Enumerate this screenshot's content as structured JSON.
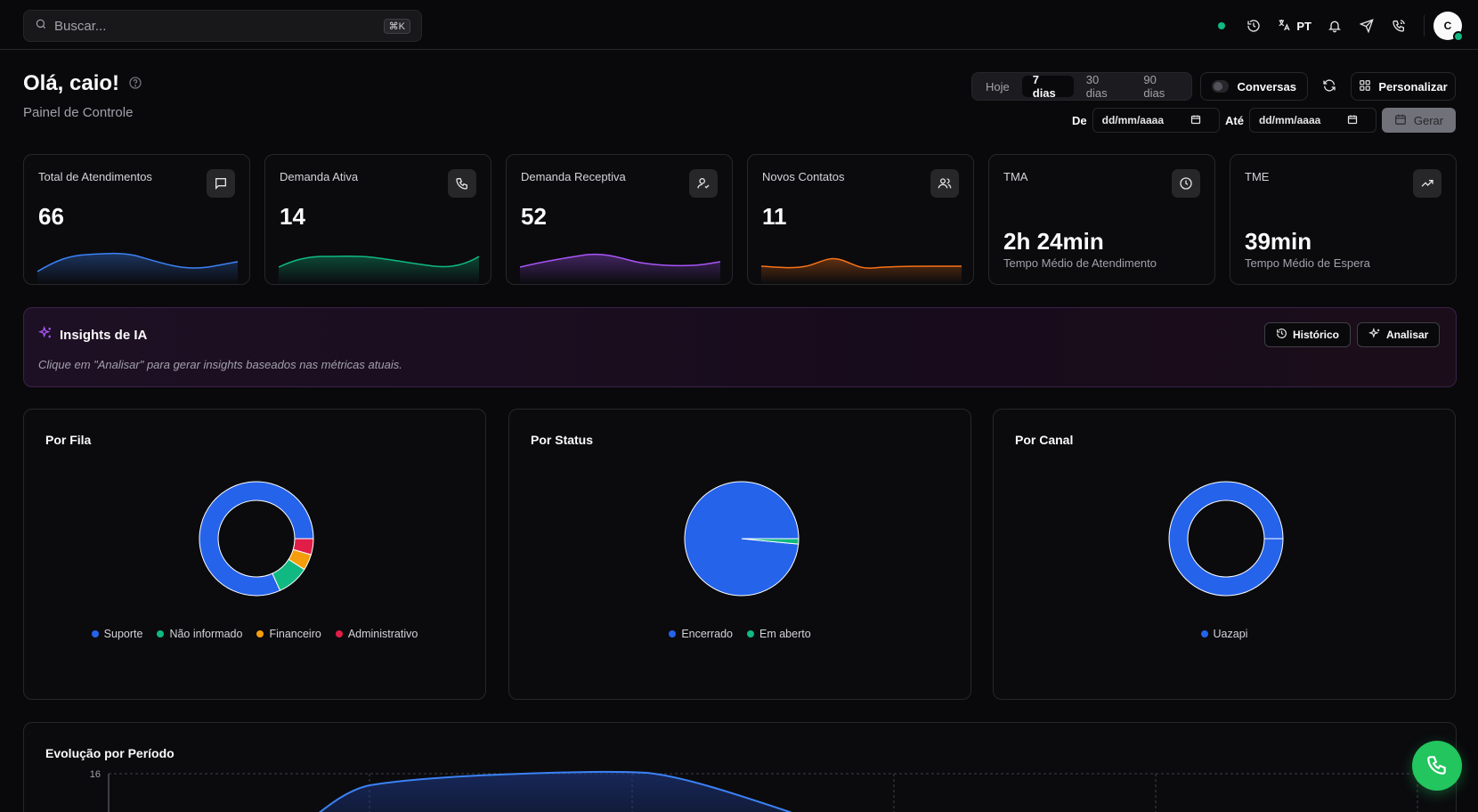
{
  "topbar": {
    "search_placeholder": "Buscar...",
    "search_shortcut": "⌘K",
    "language": "PT",
    "avatar_initial": "C"
  },
  "header": {
    "greeting": "Olá, caio!",
    "subtitle": "Painel de Controle"
  },
  "filters": {
    "ranges": [
      "Hoje",
      "7 dias",
      "30 dias",
      "90 dias"
    ],
    "active_range": "7 dias",
    "conversas_label": "Conversas",
    "personalize_label": "Personalizar",
    "from_label": "De",
    "to_label": "Até",
    "date_placeholder": "dd/mm/aaaa",
    "generate_label": "Gerar"
  },
  "metrics": [
    {
      "title": "Total de Atendimentos",
      "value": "66",
      "icon": "message-icon",
      "color": "#3b82f6"
    },
    {
      "title": "Demanda Ativa",
      "value": "14",
      "icon": "phone-icon",
      "color": "#10b981"
    },
    {
      "title": "Demanda Receptiva",
      "value": "52",
      "icon": "user-check-icon",
      "color": "#a855f7"
    },
    {
      "title": "Novos Contatos",
      "value": "11",
      "icon": "users-icon",
      "color": "#f97316"
    },
    {
      "title": "TMA",
      "value": "2h 24min",
      "caption": "Tempo Médio de Atendimento",
      "icon": "clock-icon"
    },
    {
      "title": "TME",
      "value": "39min",
      "caption": "Tempo Médio de Espera",
      "icon": "trending-up-icon"
    }
  ],
  "insights": {
    "title": "Insights de IA",
    "description": "Clique em \"Analisar\" para gerar insights baseados nas métricas atuais.",
    "history_label": "Histórico",
    "analyze_label": "Analisar"
  },
  "panels": {
    "fila": {
      "title": "Por Fila",
      "legend": [
        {
          "label": "Suporte",
          "color": "#2563eb"
        },
        {
          "label": "Não informado",
          "color": "#10b981"
        },
        {
          "label": "Financeiro",
          "color": "#f59e0b"
        },
        {
          "label": "Administrativo",
          "color": "#e11d48"
        }
      ]
    },
    "status": {
      "title": "Por Status",
      "legend": [
        {
          "label": "Encerrado",
          "color": "#2563eb"
        },
        {
          "label": "Em aberto",
          "color": "#10b981"
        }
      ]
    },
    "canal": {
      "title": "Por Canal",
      "legend": [
        {
          "label": "Uazapi",
          "color": "#2563eb"
        }
      ]
    }
  },
  "chart_data": [
    {
      "type": "pie",
      "title": "Por Fila",
      "categories": [
        "Suporte",
        "Não informado",
        "Financeiro",
        "Administrativo"
      ],
      "values": [
        54,
        6,
        3,
        3
      ],
      "donut": true
    },
    {
      "type": "pie",
      "title": "Por Status",
      "categories": [
        "Encerrado",
        "Em aberto"
      ],
      "values": [
        65,
        1
      ]
    },
    {
      "type": "pie",
      "title": "Por Canal",
      "categories": [
        "Uazapi"
      ],
      "values": [
        66
      ],
      "donut": true
    },
    {
      "type": "area",
      "title": "Evolução por Período",
      "ylim": [
        0,
        16
      ],
      "y_ticks": [
        "16"
      ]
    }
  ],
  "evolution": {
    "title": "Evolução por Período",
    "y_tick_top": "16"
  }
}
